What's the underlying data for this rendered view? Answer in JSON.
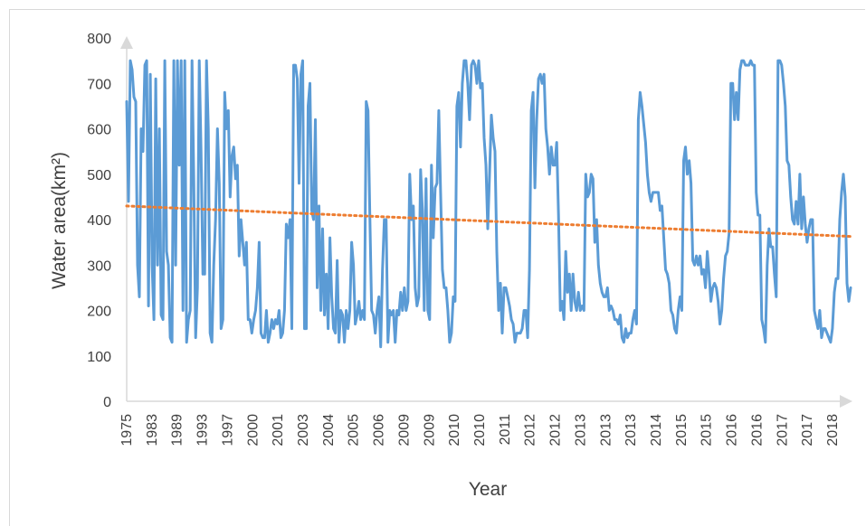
{
  "chart_data": {
    "type": "line",
    "title": "",
    "xlabel": "Year",
    "ylabel": "Water area(km²)",
    "ylim": [
      0,
      800
    ],
    "yticks": [
      0,
      100,
      200,
      300,
      400,
      500,
      600,
      700,
      800
    ],
    "grid": false,
    "legend": "none",
    "x_tick_labels": [
      "1975",
      "1983",
      "1989",
      "1993",
      "1997",
      "2000",
      "2001",
      "2003",
      "2004",
      "2005",
      "2006",
      "2009",
      "2009",
      "2010",
      "2010",
      "2011",
      "2012",
      "2012",
      "2013",
      "2013",
      "2013",
      "2014",
      "2015",
      "2015",
      "2016",
      "2016",
      "2017",
      "2017",
      "2018"
    ],
    "series": [
      {
        "type": "line",
        "color": "#5b9bd5",
        "values": [
          660,
          440,
          750,
          730,
          670,
          660,
          300,
          230,
          600,
          550,
          740,
          750,
          210,
          720,
          300,
          180,
          710,
          300,
          600,
          190,
          180,
          750,
          330,
          300,
          140,
          130,
          750,
          300,
          750,
          520,
          750,
          200,
          750,
          130,
          180,
          200,
          750,
          480,
          140,
          250,
          750,
          550,
          280,
          280,
          750,
          600,
          150,
          130,
          300,
          400,
          600,
          480,
          160,
          180,
          680,
          600,
          640,
          450,
          540,
          560,
          490,
          520,
          320,
          400,
          350,
          300,
          350,
          180,
          180,
          150,
          180,
          200,
          250,
          350,
          150,
          140,
          140,
          200,
          130,
          150,
          180,
          160,
          180,
          170,
          200,
          140,
          150,
          200,
          390,
          360,
          400,
          160,
          740,
          740,
          710,
          480,
          720,
          750,
          160,
          160,
          650,
          700,
          420,
          400,
          620,
          250,
          430,
          200,
          380,
          190,
          280,
          160,
          360,
          230,
          160,
          150,
          310,
          130,
          200,
          190,
          130,
          200,
          160,
          200,
          350,
          300,
          170,
          190,
          220,
          180,
          200,
          180,
          660,
          640,
          410,
          200,
          190,
          150,
          200,
          230,
          120,
          290,
          400,
          400,
          130,
          200,
          190,
          200,
          130,
          200,
          190,
          240,
          200,
          250,
          200,
          220,
          500,
          400,
          430,
          250,
          210,
          230,
          510,
          420,
          200,
          490,
          200,
          180,
          520,
          360,
          470,
          480,
          640,
          460,
          290,
          250,
          250,
          200,
          130,
          150,
          230,
          220,
          650,
          680,
          560,
          700,
          750,
          750,
          700,
          620,
          740,
          750,
          740,
          700,
          750,
          690,
          700,
          580,
          520,
          380,
          500,
          630,
          580,
          550,
          330,
          200,
          260,
          150,
          250,
          250,
          230,
          210,
          180,
          170,
          130,
          150,
          150,
          150,
          160,
          200,
          200,
          140,
          290,
          640,
          680,
          470,
          620,
          710,
          720,
          700,
          720,
          600,
          560,
          500,
          560,
          520,
          520,
          570,
          410,
          200,
          220,
          180,
          330,
          240,
          280,
          200,
          280,
          220,
          200,
          240,
          200,
          210,
          200,
          500,
          450,
          460,
          500,
          490,
          350,
          400,
          300,
          260,
          240,
          230,
          230,
          250,
          200,
          210,
          200,
          180,
          180,
          170,
          190,
          140,
          130,
          160,
          140,
          150,
          150,
          180,
          200,
          170,
          620,
          680,
          650,
          610,
          570,
          500,
          460,
          440,
          460,
          460,
          460,
          460,
          420,
          430,
          360,
          290,
          280,
          260,
          200,
          190,
          160,
          150,
          200,
          230,
          200,
          530,
          560,
          500,
          530,
          480,
          310,
          300,
          320,
          300,
          320,
          280,
          290,
          250,
          330,
          280,
          220,
          250,
          260,
          250,
          220,
          170,
          200,
          270,
          320,
          330,
          370,
          700,
          700,
          620,
          680,
          620,
          730,
          750,
          750,
          740,
          740,
          740,
          750,
          740,
          740,
          460,
          410,
          410,
          180,
          160,
          130,
          300,
          380,
          340,
          340,
          280,
          230,
          750,
          750,
          740,
          700,
          650,
          530,
          520,
          450,
          400,
          390,
          440,
          390,
          500,
          380,
          450,
          390,
          350,
          380,
          400,
          400,
          200,
          180,
          160,
          200,
          140,
          160,
          160,
          150,
          140,
          130,
          160,
          240,
          270,
          270,
          400,
          460,
          500,
          450,
          260,
          220,
          250
        ]
      },
      {
        "type": "trendline",
        "color": "#ed7d31",
        "style": "dotted",
        "start": 430,
        "end": 363
      }
    ]
  }
}
